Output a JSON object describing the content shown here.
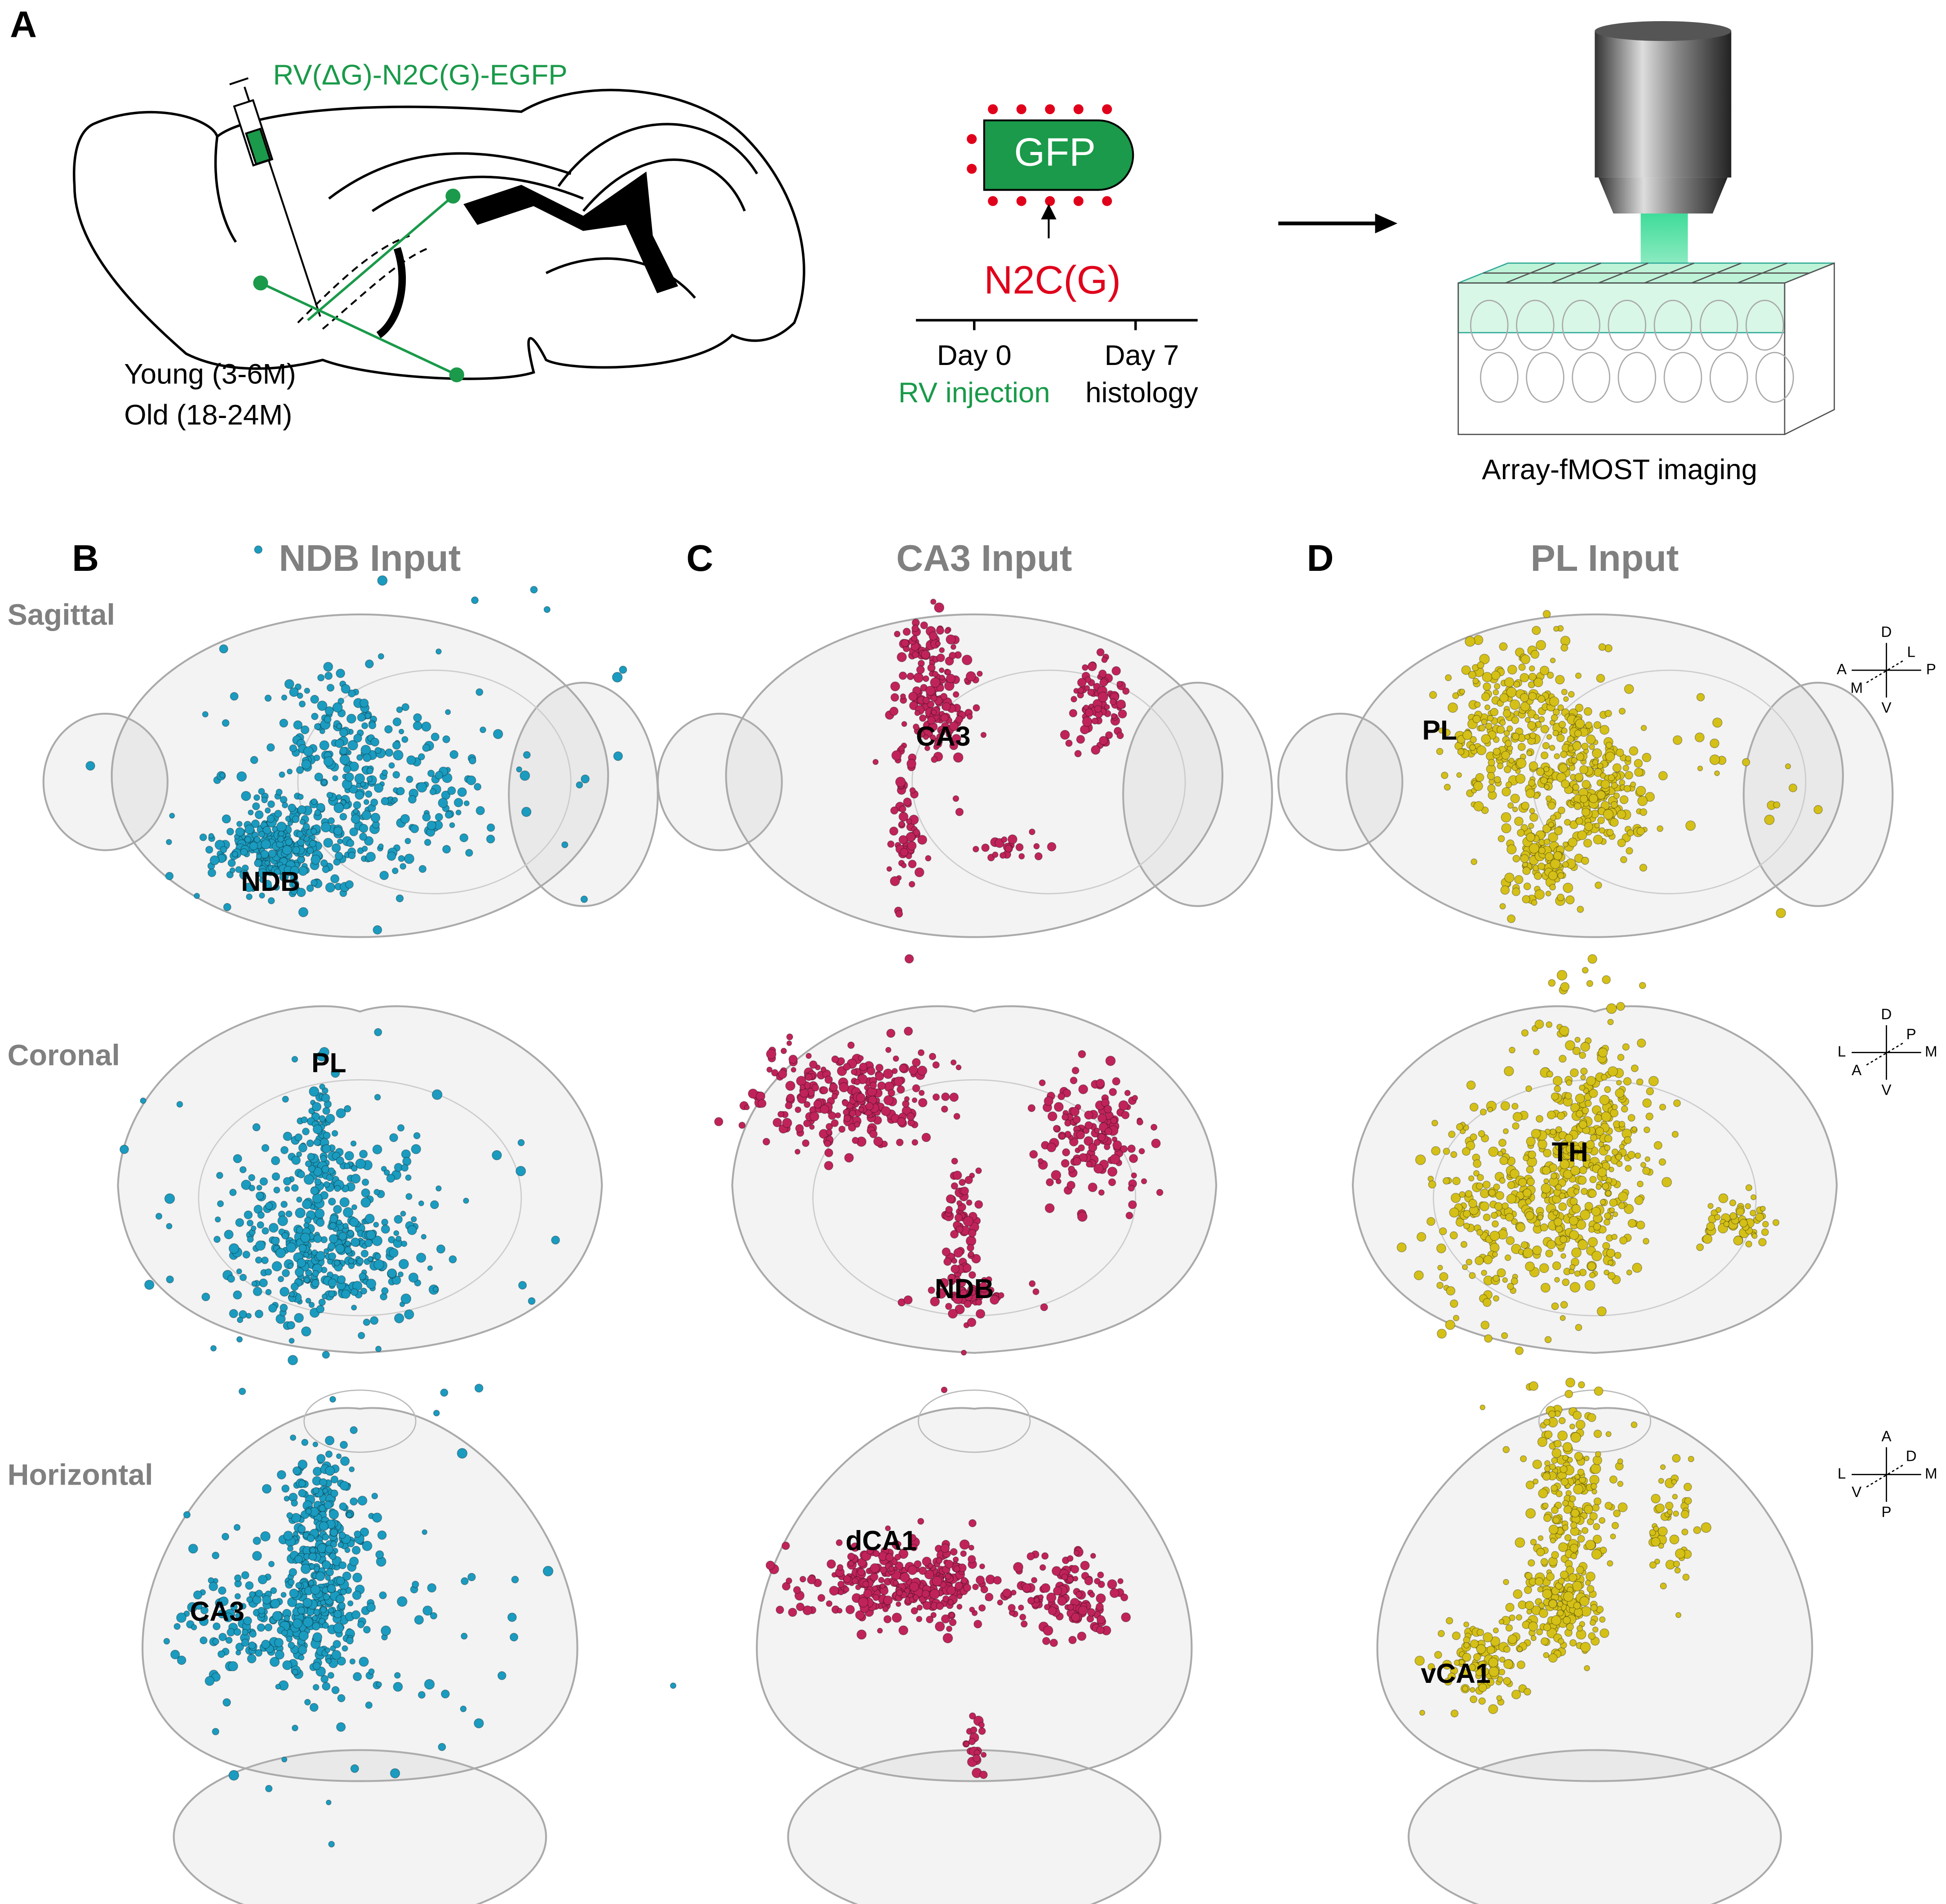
{
  "panel_a": {
    "label": "A",
    "virus": "RV(ΔG)-N2C(G)-EGFP",
    "groups": [
      "Young (3-6M)",
      "Old (18-24M)"
    ],
    "particle": "GFP",
    "glycoprotein": "N2C(G)",
    "timeline": [
      {
        "day": "Day 0",
        "event": "RV injection"
      },
      {
        "day": "Day 7",
        "event": "histology"
      }
    ],
    "imaging": "Array-fMOST imaging"
  },
  "views": [
    "Sagittal",
    "Coronal",
    "Horizontal"
  ],
  "orientation": [
    {
      "up": "D",
      "down": "V",
      "left": "A",
      "right": "P",
      "diag_up": "L",
      "diag_down": "M"
    },
    {
      "up": "D",
      "down": "V",
      "left": "L",
      "right": "M",
      "diag_up": "P",
      "diag_down": "A"
    },
    {
      "up": "A",
      "down": "P",
      "left": "L",
      "right": "M",
      "diag_up": "D",
      "diag_down": "V"
    }
  ],
  "panels": [
    {
      "label": "B",
      "title": "NDB Input",
      "color": "#1a9bbf",
      "regions": [
        "NDB",
        "PL",
        "CA3"
      ]
    },
    {
      "label": "C",
      "title": "CA3 Input",
      "color": "#c0235a",
      "regions": [
        "CA3",
        "NDB",
        "dCA1"
      ]
    },
    {
      "label": "D",
      "title": "PL Input",
      "color": "#d4c017",
      "regions": [
        "PL",
        "TH",
        "vCA1"
      ]
    }
  ]
}
